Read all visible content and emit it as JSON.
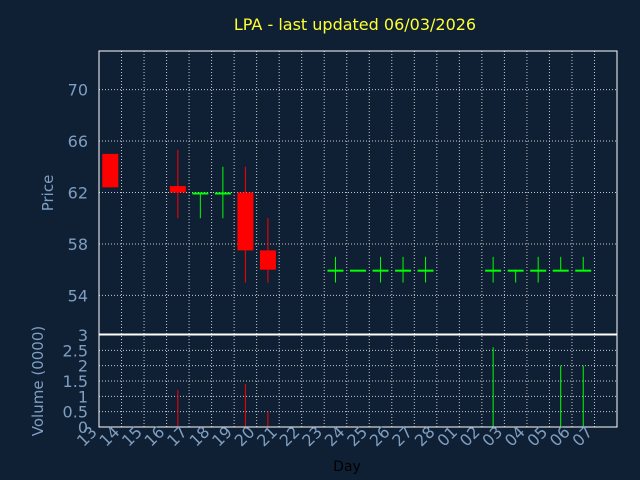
{
  "chart_data": {
    "type": "candlestick",
    "title": "LPA - last updated 06/03/2026",
    "xlabel": "Day",
    "price_ylabel": "Price",
    "volume_ylabel": "Volume (0000)",
    "price_ylim": [
      51,
      73
    ],
    "price_yticks": [
      "54",
      "58",
      "62",
      "66",
      "70"
    ],
    "volume_ylim": [
      0,
      3
    ],
    "volume_yticks": [
      "0",
      "0.5",
      "1",
      "1.5",
      "2",
      "2.5",
      "3"
    ],
    "x_tick_labels": [
      "13",
      "14",
      "15",
      "16",
      "17",
      "18",
      "19",
      "20",
      "21",
      "22",
      "23",
      "24",
      "25",
      "26",
      "27",
      "28",
      "01",
      "02",
      "03",
      "04",
      "05",
      "06",
      "07"
    ],
    "grid": true,
    "colors": {
      "background": "#0f2035",
      "plot_border": "#ffffff",
      "grid": "#c8c8c8",
      "up": "#00ff00",
      "down": "#ff0000",
      "title": "#ffff33",
      "axis_text": "#7f9ec0"
    },
    "candles": [
      {
        "day": "13",
        "open": 65.0,
        "high": 65.0,
        "low": 62.4,
        "close": 62.4,
        "volume": 0.0
      },
      {
        "day": "16",
        "open": 62.5,
        "high": 65.3,
        "low": 60.0,
        "close": 62.0,
        "volume": 1.2
      },
      {
        "day": "17",
        "open": 62.0,
        "high": 62.0,
        "low": 60.0,
        "close": 62.0,
        "volume": 0.0
      },
      {
        "day": "18",
        "open": 62.0,
        "high": 64.0,
        "low": 60.0,
        "close": 62.0,
        "volume": 0.0
      },
      {
        "day": "19",
        "open": 62.0,
        "high": 64.0,
        "low": 55.0,
        "close": 57.5,
        "volume": 1.4
      },
      {
        "day": "20",
        "open": 57.5,
        "high": 60.0,
        "low": 55.0,
        "close": 56.0,
        "volume": 0.5
      },
      {
        "day": "23",
        "open": 56.0,
        "high": 57.0,
        "low": 55.0,
        "close": 56.0,
        "volume": 0.0
      },
      {
        "day": "24",
        "open": 56.0,
        "high": 56.0,
        "low": 56.0,
        "close": 56.0,
        "volume": 0.0
      },
      {
        "day": "25",
        "open": 56.0,
        "high": 57.0,
        "low": 55.0,
        "close": 56.0,
        "volume": 0.0
      },
      {
        "day": "26",
        "open": 56.0,
        "high": 57.0,
        "low": 55.0,
        "close": 56.0,
        "volume": 0.0
      },
      {
        "day": "27",
        "open": 56.0,
        "high": 57.0,
        "low": 55.0,
        "close": 56.0,
        "volume": 0.0
      },
      {
        "day": "02",
        "open": 56.0,
        "high": 57.0,
        "low": 55.0,
        "close": 56.0,
        "volume": 2.6
      },
      {
        "day": "03",
        "open": 56.0,
        "high": 56.0,
        "low": 55.0,
        "close": 56.0,
        "volume": 0.0
      },
      {
        "day": "04",
        "open": 56.0,
        "high": 57.0,
        "low": 55.0,
        "close": 56.0,
        "volume": 0.0
      },
      {
        "day": "05",
        "open": 56.0,
        "high": 57.0,
        "low": 56.0,
        "close": 56.0,
        "volume": 2.0
      },
      {
        "day": "06",
        "open": 56.0,
        "high": 57.0,
        "low": 56.0,
        "close": 56.0,
        "volume": 2.0
      }
    ]
  }
}
